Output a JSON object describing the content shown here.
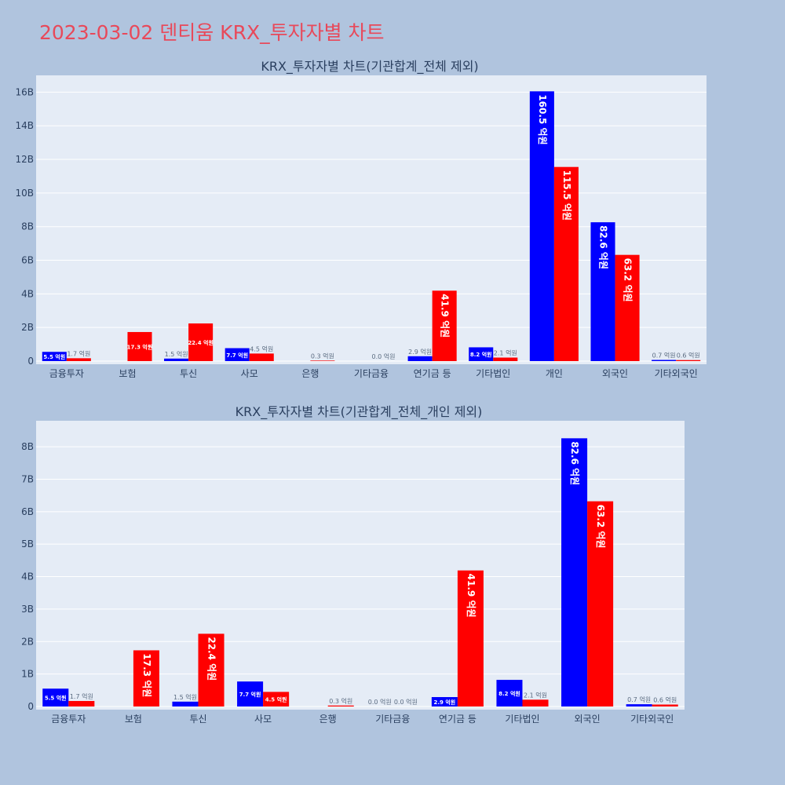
{
  "title": "2023-03-02 덴티움 KRX_투자자별 차트",
  "colors": {
    "background": "#b0c4de",
    "plot_bg": "#e5ecf6",
    "buy": "#0000ff",
    "sell": "#ff0000",
    "title": "#e8495a"
  },
  "chart_data": [
    {
      "type": "bar",
      "title": "KRX_투자자별 차트(기관합계_전체 제외)",
      "categories": [
        "금융투자",
        "보험",
        "투신",
        "사모",
        "은행",
        "기타금융",
        "연기금 등",
        "기타법인",
        "개인",
        "외국인",
        "기타외국인"
      ],
      "series": [
        {
          "color": "#0000ff",
          "values": [
            0.55,
            0,
            0.15,
            0.77,
            0,
            0,
            0.29,
            0.82,
            16.05,
            8.26,
            0.07
          ],
          "labels": [
            "5.5 억원",
            "",
            "1.5 억원",
            "7.7 억원",
            "",
            "",
            "2.9 억원",
            "8.2 억원",
            "160.5 억원",
            "82.6 억원",
            "0.7 억원"
          ]
        },
        {
          "color": "#ff0000",
          "values": [
            0.17,
            1.73,
            2.24,
            0.45,
            0.03,
            0.0,
            4.19,
            0.21,
            11.55,
            6.32,
            0.06
          ],
          "labels": [
            "1.7 억원",
            "17.3 억원",
            "22.4 억원",
            "4.5 억원",
            "0.3 억원",
            "0.0 억원",
            "41.9 억원",
            "2.1 억원",
            "115.5 억원",
            "63.2 억원",
            "0.6 억원"
          ]
        }
      ],
      "yticks": [
        0,
        2,
        4,
        6,
        8,
        10,
        12,
        14,
        16
      ],
      "ytick_labels": [
        "0",
        "2B",
        "4B",
        "6B",
        "8B",
        "10B",
        "12B",
        "14B",
        "16B"
      ],
      "ylim": [
        0,
        17
      ],
      "unit": "B"
    },
    {
      "type": "bar",
      "title": "KRX_투자자별 차트(기관합계_전체_개인 제외)",
      "categories": [
        "금융투자",
        "보험",
        "투신",
        "사모",
        "은행",
        "기타금융",
        "연기금 등",
        "기타법인",
        "외국인",
        "기타외국인"
      ],
      "series": [
        {
          "color": "#0000ff",
          "values": [
            0.55,
            0,
            0.15,
            0.77,
            0,
            0.0,
            0.29,
            0.82,
            8.26,
            0.07
          ],
          "labels": [
            "5.5 억원",
            "",
            "1.5 억원",
            "7.7 억원",
            "",
            "0.0 억원",
            "2.9 억원",
            "8.2 억원",
            "82.6 억원",
            "0.7 억원"
          ]
        },
        {
          "color": "#ff0000",
          "values": [
            0.17,
            1.73,
            2.24,
            0.45,
            0.03,
            0.0,
            4.19,
            0.21,
            6.32,
            0.06
          ],
          "labels": [
            "1.7 억원",
            "17.3 억원",
            "22.4 억원",
            "4.5 억원",
            "0.3 억원",
            "0.0 억원",
            "41.9 억원",
            "2.1 억원",
            "63.2 억원",
            "0.6 억원"
          ]
        }
      ],
      "yticks": [
        0,
        1,
        2,
        3,
        4,
        5,
        6,
        7,
        8
      ],
      "ytick_labels": [
        "0",
        "1B",
        "2B",
        "3B",
        "4B",
        "5B",
        "6B",
        "7B",
        "8B"
      ],
      "ylim": [
        0,
        8.8
      ],
      "unit": "B"
    }
  ]
}
